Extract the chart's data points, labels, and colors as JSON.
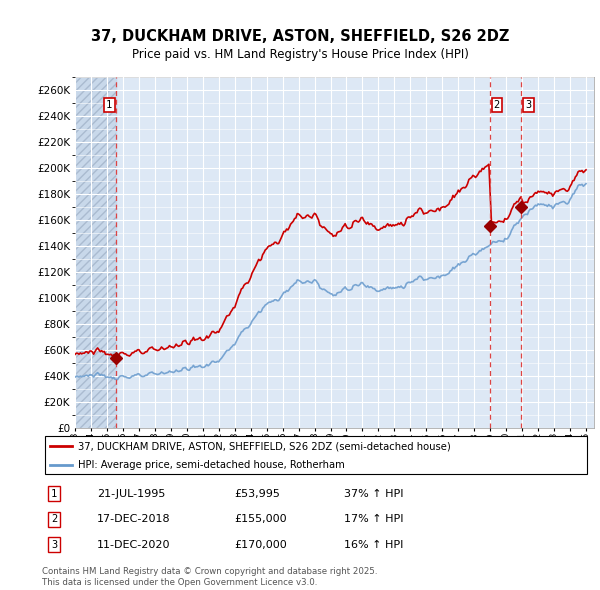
{
  "title": "37, DUCKHAM DRIVE, ASTON, SHEFFIELD, S26 2DZ",
  "subtitle": "Price paid vs. HM Land Registry's House Price Index (HPI)",
  "ylim": [
    0,
    270000
  ],
  "yticks": [
    0,
    20000,
    40000,
    60000,
    80000,
    100000,
    120000,
    140000,
    160000,
    180000,
    200000,
    220000,
    240000,
    260000
  ],
  "bg_color": "#dde8f5",
  "grid_color": "#ffffff",
  "hatch_color": "#c8d8ea",
  "sale_dates_year": [
    1995.55,
    2018.96,
    2020.94
  ],
  "sale_prices": [
    53995,
    155000,
    170000
  ],
  "legend_entry1": "37, DUCKHAM DRIVE, ASTON, SHEFFIELD, S26 2DZ (semi-detached house)",
  "legend_entry2": "HPI: Average price, semi-detached house, Rotherham",
  "footer": "Contains HM Land Registry data © Crown copyright and database right 2025.\nThis data is licensed under the Open Government Licence v3.0.",
  "line_color": "#cc0000",
  "hpi_color": "#6699cc",
  "dashed_line_color": "#dd4444",
  "marker_color": "#990000",
  "label_box_color": "#cc0000",
  "rows": [
    [
      "1",
      "21-JUL-1995",
      "£53,995",
      "37% ↑ HPI"
    ],
    [
      "2",
      "17-DEC-2018",
      "£155,000",
      "17% ↑ HPI"
    ],
    [
      "3",
      "11-DEC-2020",
      "£170,000",
      "16% ↑ HPI"
    ]
  ]
}
